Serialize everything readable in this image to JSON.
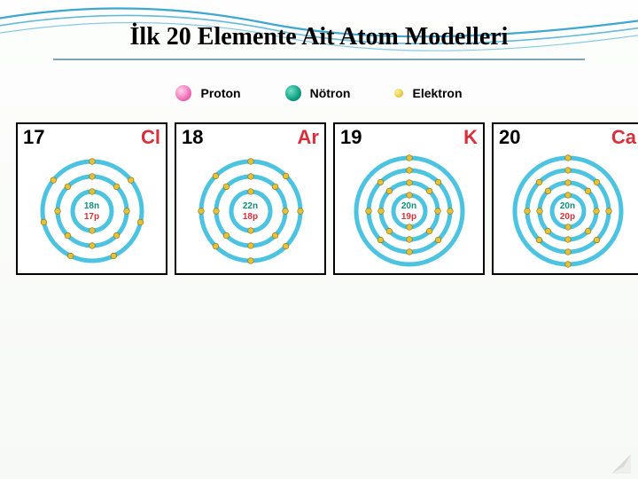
{
  "title": {
    "text": "İlk 20 Elemente Ait Atom Modelleri",
    "fontsize": 28,
    "color": "#1a1a1a"
  },
  "wave_stroke": "#3ea7d1",
  "underline_color": "#7da3b8",
  "legend": {
    "proton": {
      "label": "Proton",
      "fill": "#e86fb3"
    },
    "neutron": {
      "label": "Nötron",
      "fill": "#0e9e82"
    },
    "electron": {
      "label": "Elektron",
      "fill": "#e3c23a"
    }
  },
  "shell_stroke": "#4cc3e0",
  "shell_stroke_width": 5,
  "electron_fill": "#e3c23a",
  "electron_stroke": "#8a6b0a",
  "electron_radius": 3.3,
  "atoms": [
    {
      "number": "17",
      "symbol": "Cl",
      "symbol_color": "#d8303a",
      "neutrons": "18n",
      "protons": "17p",
      "shells": [
        2,
        8,
        7
      ]
    },
    {
      "number": "18",
      "symbol": "Ar",
      "symbol_color": "#d8303a",
      "neutrons": "22n",
      "protons": "18p",
      "shells": [
        2,
        8,
        8
      ]
    },
    {
      "number": "19",
      "symbol": "K",
      "symbol_color": "#d8303a",
      "neutrons": "20n",
      "protons": "19p",
      "shells": [
        2,
        8,
        8,
        1
      ]
    },
    {
      "number": "20",
      "symbol": "Ca",
      "symbol_color": "#d8303a",
      "neutrons": "20n",
      "protons": "20p",
      "shells": [
        2,
        8,
        8,
        2
      ]
    }
  ],
  "shell_radii_3": [
    22,
    39,
    56
  ],
  "shell_radii_4": [
    18,
    32,
    46,
    60
  ],
  "cell": {
    "size": 167,
    "border": "#000000",
    "bg": "#ffffff"
  },
  "corner_fold": "#d9d9d9"
}
